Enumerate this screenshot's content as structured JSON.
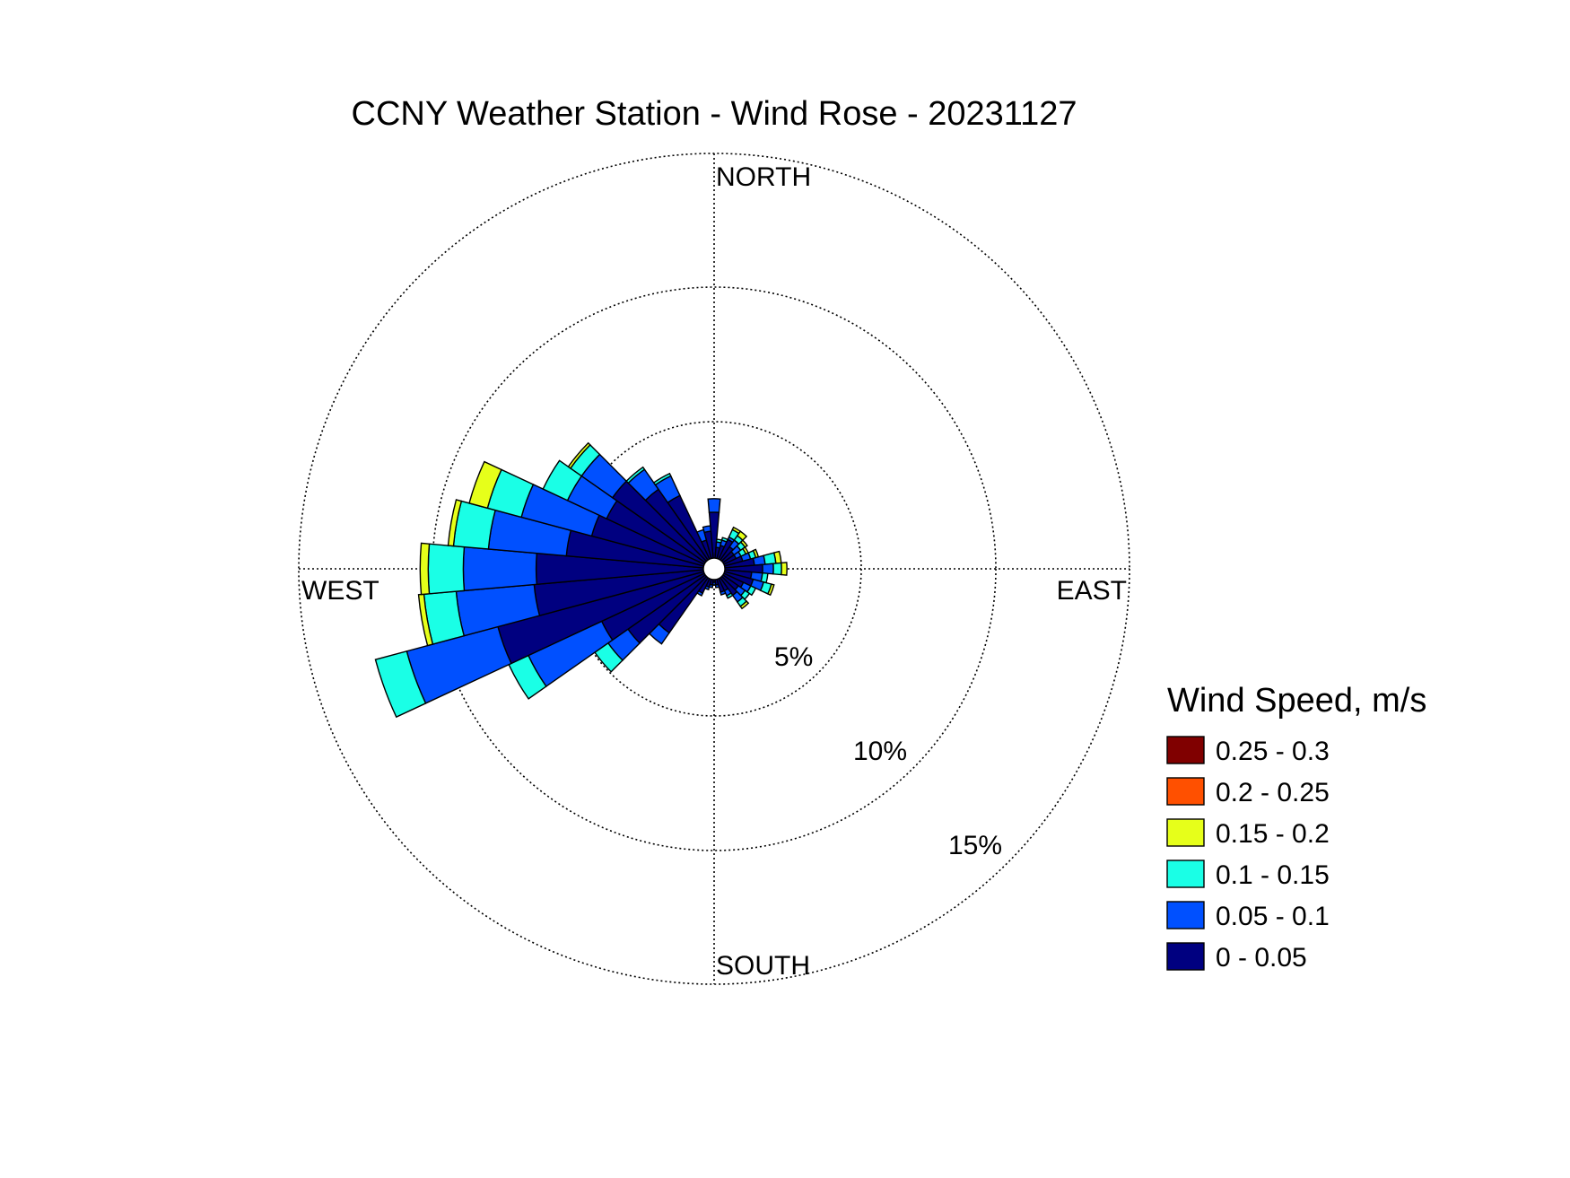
{
  "chart_data": {
    "type": "wind-rose",
    "title": "CCNY Weather Station - Wind Rose - 20231127",
    "direction_labels": {
      "north": "NORTH",
      "east": "EAST",
      "south": "SOUTH",
      "west": "WEST"
    },
    "ring_labels": [
      "5%",
      "10%",
      "15%"
    ],
    "ring_values_percent": [
      5,
      10,
      15
    ],
    "r_max_percent": 15,
    "legend": {
      "title": "Wind Speed, m/s",
      "bins": [
        {
          "label": "0.25 - 0.3",
          "color": "#800000"
        },
        {
          "label": "0.2 - 0.25",
          "color": "#ff5000"
        },
        {
          "label": "0.15 - 0.2",
          "color": "#e6ff1a"
        },
        {
          "label": "0.1 - 0.15",
          "color": "#1affe6"
        },
        {
          "label": "0.05 - 0.1",
          "color": "#0050ff"
        },
        {
          "label": "0 - 0.05",
          "color": "#000080"
        }
      ]
    },
    "bin_colors_inner_to_outer": [
      "#000080",
      "#0050ff",
      "#1affe6",
      "#e6ff1a",
      "#ff5000",
      "#800000"
    ],
    "directions_deg": [
      0,
      10,
      20,
      30,
      40,
      50,
      60,
      70,
      80,
      90,
      100,
      110,
      120,
      130,
      140,
      150,
      160,
      170,
      180,
      190,
      200,
      210,
      220,
      230,
      240,
      250,
      260,
      270,
      280,
      290,
      300,
      310,
      320,
      330,
      340,
      350
    ],
    "cumulative_percent_by_direction": [
      [
        1.7,
        2.2
      ],
      [
        0.4,
        0.6,
        0.7
      ],
      [
        0.5,
        0.7,
        0.8
      ],
      [
        0.8,
        0.9,
        1.2,
        1.3
      ],
      [
        0.6,
        0.9,
        1.1,
        1.3
      ],
      [
        0.5,
        0.8,
        1.0,
        1.1
      ],
      [
        0.5,
        0.7,
        0.9,
        1.0
      ],
      [
        0.7,
        1.0,
        1.2,
        1.3
      ],
      [
        1.1,
        1.5,
        1.9,
        2.1
      ],
      [
        1.4,
        1.8,
        2.1,
        2.3
      ],
      [
        1.0,
        1.4,
        1.6
      ],
      [
        1.1,
        1.5,
        1.8,
        1.9
      ],
      [
        0.8,
        1.1,
        1.3
      ],
      [
        0.7,
        1.0,
        1.2
      ],
      [
        0.8,
        1.1,
        1.3,
        1.4
      ],
      [
        0.5,
        0.7,
        0.8
      ],
      [
        0.5,
        0.6
      ],
      [
        0.2,
        0.3
      ],
      [
        0.1,
        0.2
      ],
      [
        0.2,
        0.3
      ],
      [
        0.3,
        0.4
      ],
      [
        0.6,
        0.7
      ],
      [
        2.5,
        3.0
      ],
      [
        3.5,
        4.4,
        5.0
      ],
      [
        4.2,
        7.2,
        8.0
      ],
      [
        7.9,
        11.4,
        12.6
      ],
      [
        6.3,
        9.2,
        10.4,
        10.6
      ],
      [
        6.2,
        8.9,
        10.2,
        10.5
      ],
      [
        5.1,
        8.0,
        9.3,
        9.5
      ],
      [
        4.3,
        7.0,
        8.3,
        9.0
      ],
      [
        4.0,
        5.6,
        6.6
      ],
      [
        4.2,
        5.6,
        6.1,
        6.2
      ],
      [
        3.2,
        4.1,
        4.2
      ],
      [
        2.6,
        3.4,
        3.5
      ],
      [
        0.7,
        1.1
      ],
      [
        1.0,
        1.2
      ]
    ]
  }
}
